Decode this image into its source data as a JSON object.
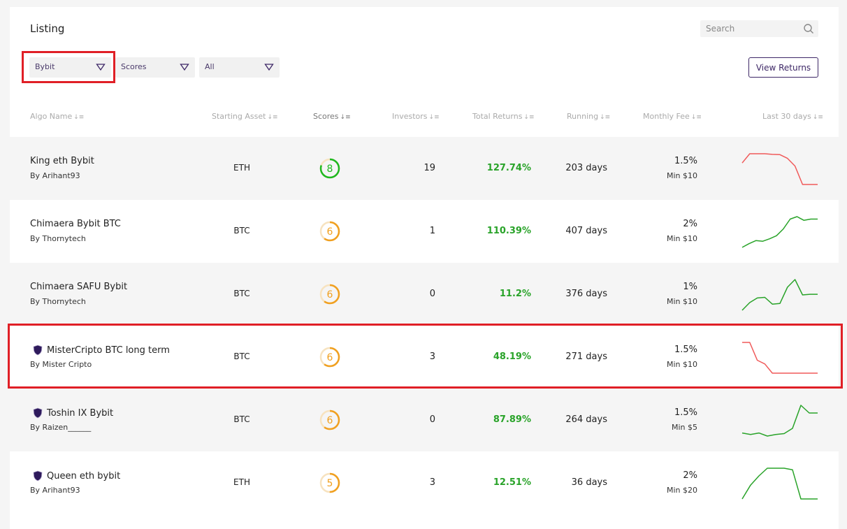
{
  "header": {
    "title": "Listing",
    "search_placeholder": "Search",
    "view_returns_label": "View Returns"
  },
  "filters": [
    {
      "label": "Bybit"
    },
    {
      "label": "Scores"
    },
    {
      "label": "All"
    }
  ],
  "columns": [
    "Algo Name",
    "Starting Asset",
    "Scores",
    "Investors",
    "Total Returns",
    "Running",
    "Monthly Fee",
    "Last 30 days"
  ],
  "colors": {
    "positive": "#29a329",
    "negative": "#f05a5a",
    "accent": "#3d2766",
    "highlight": "#e01f26",
    "score_high": "#1fb81f",
    "score_mid": "#f0a020"
  },
  "rows": [
    {
      "name": "King eth Bybit",
      "by": "By Arihant93",
      "verified": false,
      "asset": "ETH",
      "score": "8",
      "investors": "19",
      "returns": "127.74%",
      "running": "203 days",
      "fee": "1.5%",
      "min_fee": "Min $10",
      "trend": "down",
      "spark": [
        0.7,
        1.0,
        1.0,
        1.0,
        0.98,
        0.97,
        0.85,
        0.6,
        0.0,
        0.0,
        0.0
      ]
    },
    {
      "name": "Chimaera Bybit BTC",
      "by": "By Thornytech",
      "verified": false,
      "asset": "BTC",
      "score": "6",
      "investors": "1",
      "returns": "110.39%",
      "running": "407 days",
      "fee": "2%",
      "min_fee": "Min $10",
      "trend": "up",
      "spark": [
        0.0,
        0.12,
        0.22,
        0.2,
        0.28,
        0.38,
        0.6,
        0.92,
        1.0,
        0.88,
        0.92,
        0.92
      ]
    },
    {
      "name": "Chimaera SAFU Bybit",
      "by": "By Thornytech",
      "verified": false,
      "asset": "BTC",
      "score": "6",
      "investors": "0",
      "returns": "11.2%",
      "running": "376 days",
      "fee": "1%",
      "min_fee": "Min $10",
      "trend": "up",
      "spark": [
        0.0,
        0.25,
        0.4,
        0.42,
        0.2,
        0.22,
        0.75,
        1.0,
        0.5,
        0.52,
        0.52
      ]
    },
    {
      "name": "MisterCripto BTC long term",
      "by": "By Mister Cripto",
      "verified": true,
      "asset": "BTC",
      "score": "6",
      "investors": "3",
      "returns": "48.19%",
      "running": "271 days",
      "fee": "1.5%",
      "min_fee": "Min $10",
      "trend": "down",
      "spark": [
        1.0,
        1.0,
        0.42,
        0.3,
        0.0,
        0.0,
        0.0,
        0.0,
        0.0,
        0.0,
        0.0
      ]
    },
    {
      "name": "Toshin IX Bybit",
      "by": "By Raizen______",
      "verified": true,
      "asset": "BTC",
      "score": "6",
      "investors": "0",
      "returns": "87.89%",
      "running": "264 days",
      "fee": "1.5%",
      "min_fee": "Min $5",
      "trend": "up",
      "spark": [
        0.1,
        0.05,
        0.1,
        0.0,
        0.05,
        0.08,
        0.25,
        1.0,
        0.75,
        0.75
      ]
    },
    {
      "name": "Queen eth bybit",
      "by": "By Arihant93",
      "verified": true,
      "asset": "ETH",
      "score": "5",
      "investors": "3",
      "returns": "12.51%",
      "running": "36 days",
      "fee": "2%",
      "min_fee": "Min $20",
      "trend": "up",
      "spark": [
        0.0,
        0.45,
        0.75,
        1.0,
        1.0,
        1.0,
        0.95,
        0.0,
        0.0,
        0.0
      ]
    }
  ]
}
